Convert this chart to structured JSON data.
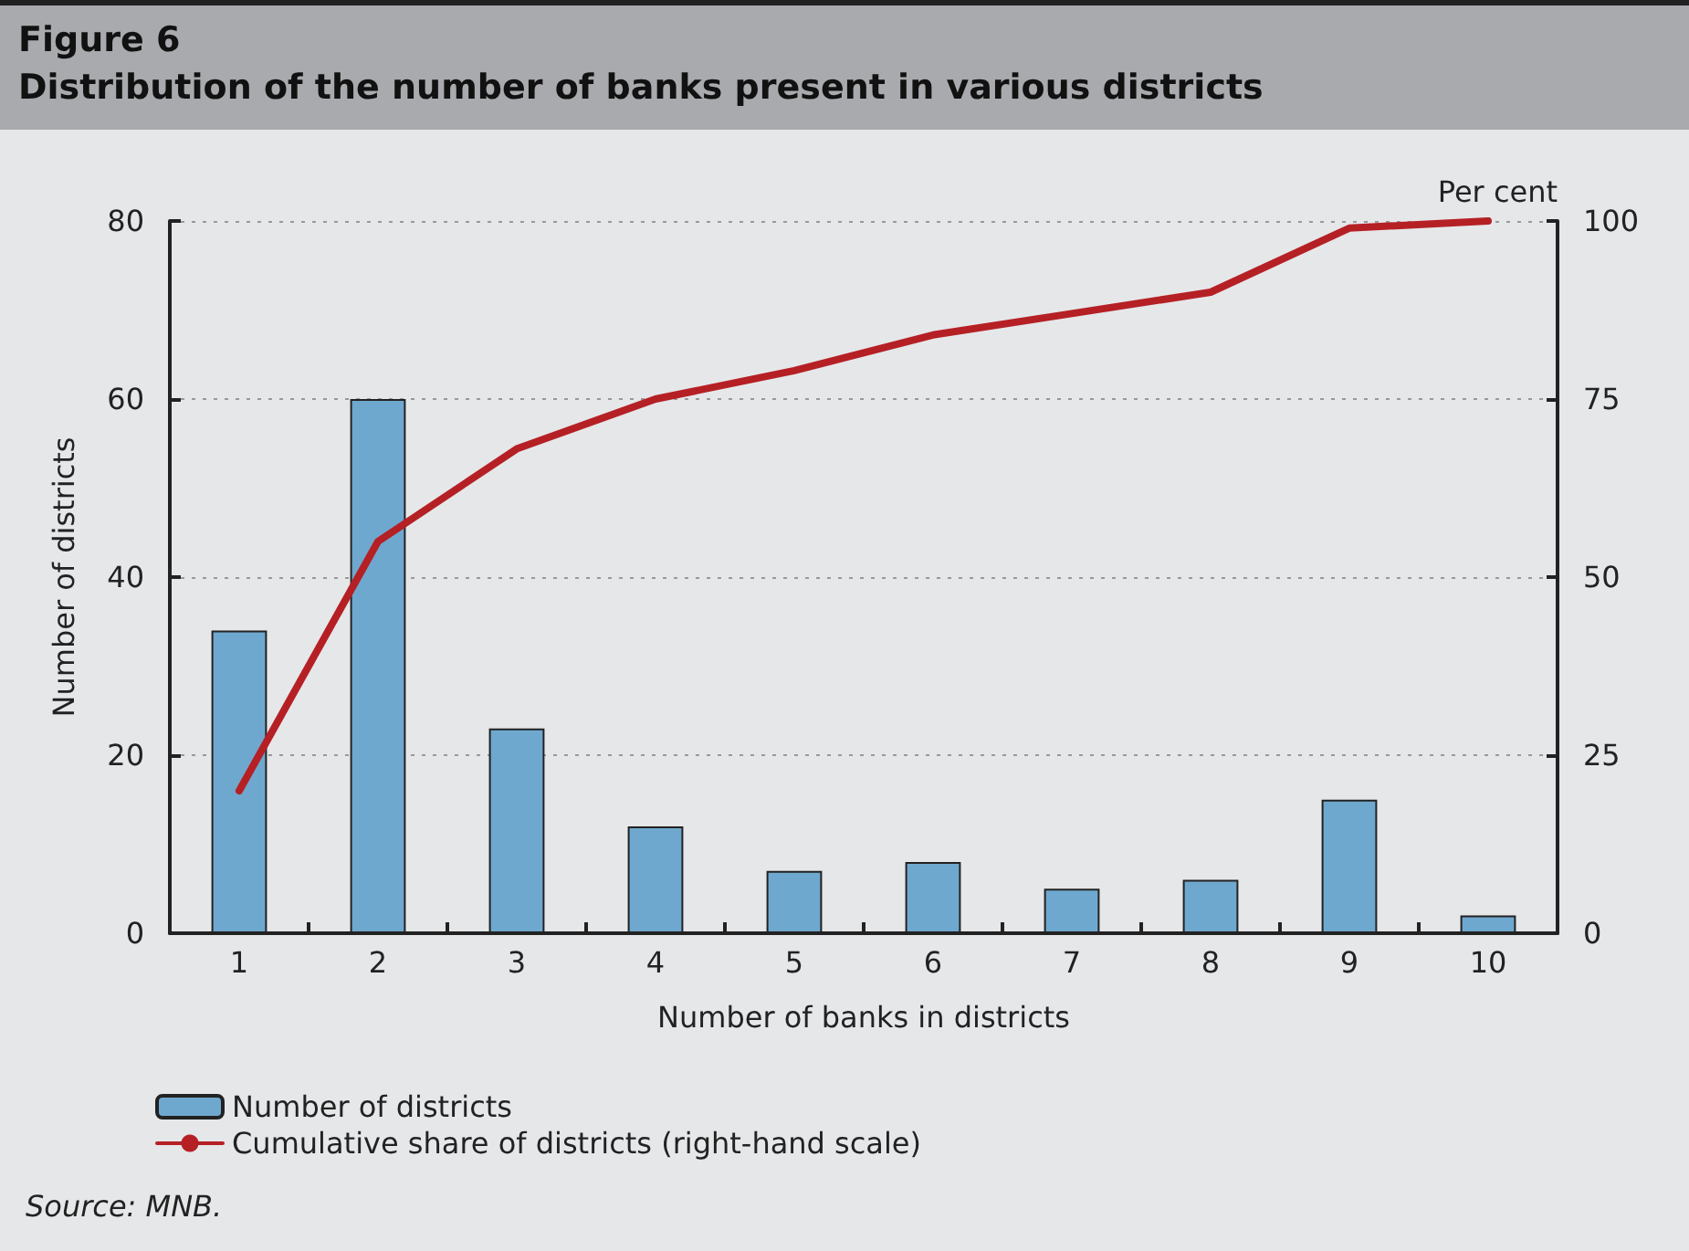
{
  "chart_data": {
    "type": "bar",
    "title": "Figure 6",
    "subtitle": "Distribution of the number of banks present in various districts",
    "xlabel": "Number of banks in districts",
    "ylabel": "Number of districts",
    "y2label": "Per cent",
    "categories": [
      "1",
      "2",
      "3",
      "4",
      "5",
      "6",
      "7",
      "8",
      "9",
      "10"
    ],
    "series": [
      {
        "name": "Number of districts",
        "color": "#6fa8ce",
        "values": [
          34,
          60,
          23,
          12,
          7,
          8,
          5,
          6,
          15,
          2
        ]
      },
      {
        "name": "Cumulative share of districts (right-hand scale)",
        "type": "line",
        "axis": "y2",
        "color": "#b52025",
        "values": [
          20,
          55,
          68,
          75,
          79,
          84,
          87,
          90,
          99,
          100
        ]
      }
    ],
    "ylim": [
      0,
      80
    ],
    "yticks": [
      0,
      20,
      40,
      60,
      80
    ],
    "y2lim": [
      0,
      100
    ],
    "y2ticks": [
      0,
      25,
      50,
      75,
      100
    ],
    "grid": "y",
    "legend": "bottom",
    "marker": "none",
    "annotations": [
      "Source: MNB."
    ]
  }
}
